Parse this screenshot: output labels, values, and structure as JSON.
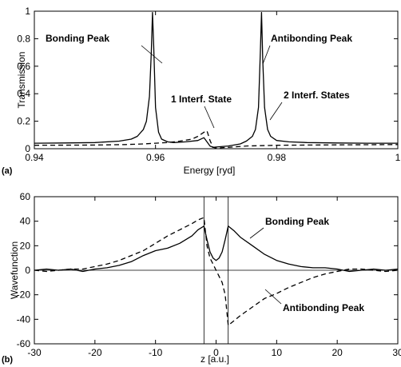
{
  "chart_data": [
    {
      "panel_label": "(a)",
      "type": "line",
      "xlabel": "Energy [ryd]",
      "ylabel": "Transmission",
      "xlim": [
        0.94,
        1.0
      ],
      "ylim": [
        0,
        1
      ],
      "x_ticks": [
        0.94,
        0.96,
        0.98,
        1
      ],
      "x_tick_labels": [
        "0.94",
        "0.96",
        "0.98",
        "1"
      ],
      "y_ticks": [
        0,
        0.2,
        0.4,
        0.6,
        0.8,
        1
      ],
      "y_tick_labels": [
        "0",
        "0.2",
        "0.4",
        "0.6",
        "0.8",
        "1"
      ],
      "grid": false,
      "series": [
        {
          "style": "solid",
          "x": [
            0.94,
            0.945,
            0.95,
            0.954,
            0.956,
            0.957,
            0.958,
            0.9585,
            0.959,
            0.9593,
            0.9595,
            0.9597,
            0.96,
            0.9605,
            0.961,
            0.962,
            0.963,
            0.965,
            0.967,
            0.968,
            0.9685,
            0.969,
            0.9695,
            0.97,
            0.972,
            0.974,
            0.975,
            0.976,
            0.9765,
            0.977,
            0.9773,
            0.9775,
            0.9777,
            0.978,
            0.9785,
            0.979,
            0.98,
            0.982,
            0.985,
            0.99,
            0.995,
            1.0
          ],
          "y": [
            0.04,
            0.042,
            0.045,
            0.055,
            0.07,
            0.09,
            0.14,
            0.2,
            0.38,
            0.7,
            0.99,
            0.75,
            0.3,
            0.12,
            0.07,
            0.05,
            0.045,
            0.05,
            0.06,
            0.08,
            0.05,
            0.02,
            0.01,
            0.012,
            0.02,
            0.035,
            0.055,
            0.09,
            0.14,
            0.3,
            0.7,
            0.99,
            0.65,
            0.3,
            0.14,
            0.09,
            0.06,
            0.05,
            0.045,
            0.042,
            0.04,
            0.04
          ]
        },
        {
          "style": "dashed",
          "x": [
            0.94,
            0.95,
            0.955,
            0.958,
            0.96,
            0.962,
            0.964,
            0.966,
            0.967,
            0.968,
            0.9685,
            0.969,
            0.9695,
            0.97,
            0.972,
            0.975,
            0.98,
            0.985,
            0.99,
            1.0
          ],
          "y": [
            0.025,
            0.027,
            0.03,
            0.035,
            0.04,
            0.045,
            0.055,
            0.07,
            0.09,
            0.12,
            0.13,
            0.06,
            0.01,
            0.005,
            0.01,
            0.02,
            0.025,
            0.027,
            0.028,
            0.03
          ]
        }
      ],
      "annotations": [
        "Bonding Peak",
        "Antibonding Peak",
        "1 Interf. State",
        "2 Interf. States"
      ]
    },
    {
      "panel_label": "(b)",
      "type": "line",
      "xlabel": "z [a.u.]",
      "ylabel": "Wavefunction",
      "xlim": [
        -30,
        30
      ],
      "ylim": [
        -60,
        60
      ],
      "x_ticks": [
        -30,
        -20,
        -10,
        0,
        10,
        20,
        30
      ],
      "x_tick_labels": [
        "-30",
        "-20",
        "-10",
        "0",
        "10",
        "20",
        "30"
      ],
      "y_ticks": [
        -60,
        -40,
        -20,
        0,
        20,
        40,
        60
      ],
      "y_tick_labels": [
        "-60",
        "-40",
        "-20",
        "0",
        "20",
        "40",
        "60"
      ],
      "grid": false,
      "vertical_lines_x": [
        -2,
        2
      ],
      "horizontal_line_y": 0,
      "series": [
        {
          "style": "solid",
          "x": [
            -30,
            -28,
            -26,
            -24,
            -22,
            -20,
            -18,
            -16,
            -14,
            -12,
            -10,
            -8,
            -6,
            -4,
            -3,
            -2,
            -1.5,
            -1,
            -0.5,
            0,
            0.5,
            1,
            1.5,
            2,
            3,
            4,
            6,
            8,
            10,
            12,
            14,
            16,
            18,
            20,
            22,
            24,
            26,
            28,
            30
          ],
          "y": [
            0,
            1,
            0,
            1,
            -1,
            1,
            2,
            4,
            7,
            12,
            16,
            18,
            22,
            28,
            33,
            36,
            25,
            15,
            10,
            8,
            10,
            15,
            25,
            36,
            32,
            27,
            20,
            13,
            8,
            5,
            3,
            2,
            2,
            1,
            -1,
            0,
            1,
            0,
            1
          ]
        },
        {
          "style": "dashed",
          "x": [
            -30,
            -28,
            -26,
            -24,
            -22,
            -20,
            -18,
            -16,
            -14,
            -12,
            -10,
            -8,
            -6,
            -4,
            -3,
            -2,
            -1.5,
            -1,
            -0.5,
            0,
            0.5,
            1,
            1.5,
            2,
            3,
            4,
            6,
            8,
            10,
            12,
            14,
            16,
            18,
            20,
            22,
            24,
            26,
            28,
            30
          ],
          "y": [
            0,
            -1,
            0,
            1,
            1,
            3,
            5,
            8,
            12,
            16,
            22,
            28,
            33,
            38,
            41,
            43,
            20,
            10,
            5,
            0,
            -5,
            -10,
            -20,
            -45,
            -41,
            -37,
            -30,
            -23,
            -19,
            -14,
            -10,
            -6,
            -3,
            -1,
            1,
            1,
            0,
            -1,
            0
          ]
        }
      ],
      "annotations": [
        "Bonding Peak",
        "Antibonding Peak"
      ]
    }
  ]
}
